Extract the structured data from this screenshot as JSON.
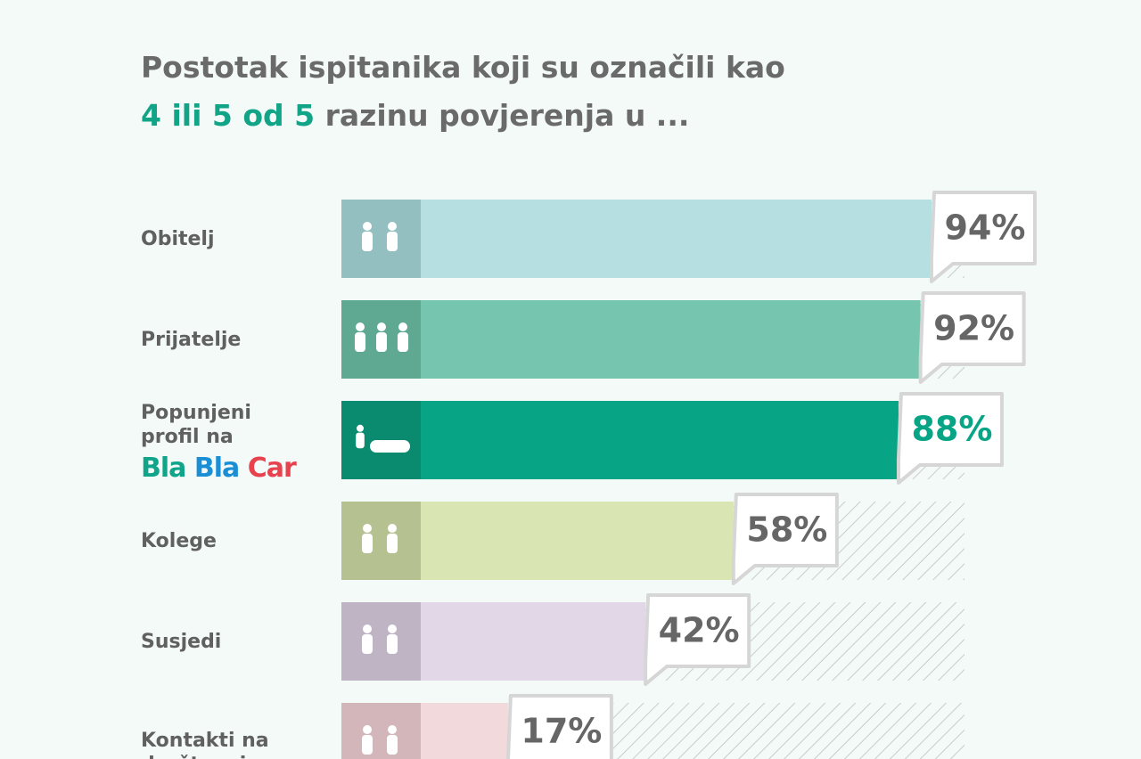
{
  "chart_data": {
    "type": "bar",
    "title_line1": "Postotak ispitanika koji su označili kao",
    "title_highlight": "4 ili 5 od 5",
    "title_rest": "razinu povjerenja u ...",
    "categories": [
      "Obitelj",
      "Prijatelje",
      "Popunjeni profil na",
      "Kolege",
      "Susjedi",
      "Kontakti na društvenim"
    ],
    "logo": [
      "Bla",
      "Bla",
      "Car"
    ],
    "values": [
      94,
      92,
      88,
      58,
      42,
      17
    ],
    "value_labels": [
      "94%",
      "92%",
      "88%",
      "58%",
      "42%",
      "17%"
    ],
    "colors": [
      "#b5dfe0",
      "#76c5ae",
      "#07a586",
      "#d9e5b3",
      "#e1d7e6",
      "#f1d9dc"
    ],
    "icon_colors": [
      "#94bfc1",
      "#5fa892",
      "#0a8a6f",
      "#b5c191",
      "#bfb4c4",
      "#d3b6ba"
    ],
    "xlim": [
      0,
      100
    ]
  }
}
